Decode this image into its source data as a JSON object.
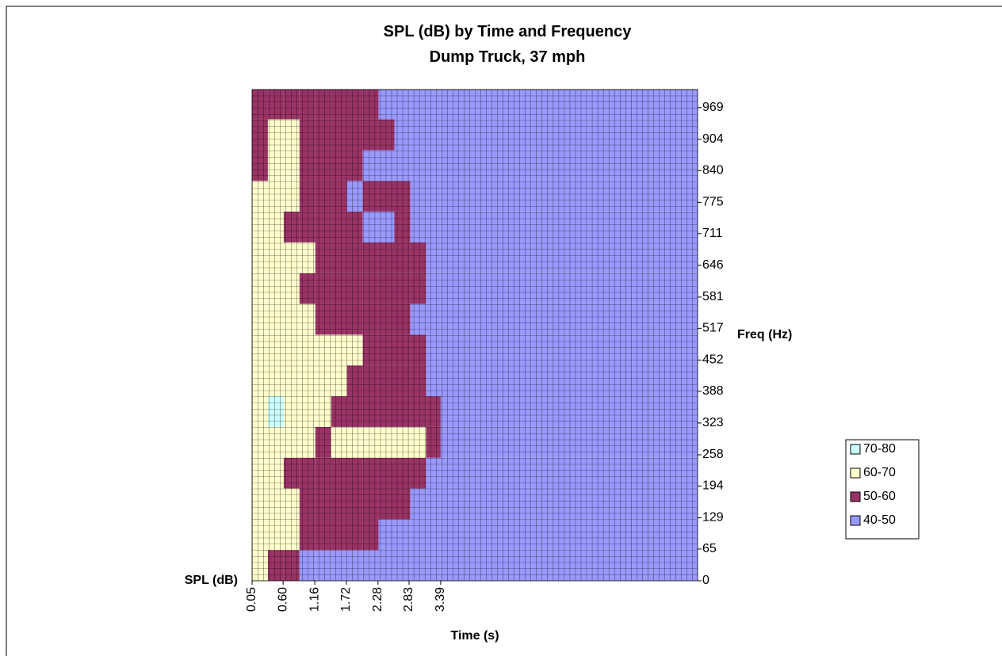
{
  "chart_data": {
    "type": "contour",
    "title": "SPL (dB) by Time and Frequency",
    "subtitle": "Dump Truck, 37 mph",
    "x_label": "Time (s)",
    "y_label": "Freq (Hz)",
    "z_label": "SPL (dB)",
    "xlim": [
      0.05,
      7.94
    ],
    "xticks": [
      {
        "value": 0.05,
        "label": "0.05"
      },
      {
        "value": 0.6,
        "label": "0.60"
      },
      {
        "value": 1.16,
        "label": "1.16"
      },
      {
        "value": 1.72,
        "label": "1.72"
      },
      {
        "value": 2.28,
        "label": "2.28"
      },
      {
        "value": 2.83,
        "label": "2.83"
      },
      {
        "value": 3.39,
        "label": "3.39"
      }
    ],
    "ylim": [
      0,
      1006
    ],
    "yticks": [
      0,
      65,
      129,
      194,
      258,
      323,
      388,
      452,
      517,
      581,
      646,
      711,
      775,
      840,
      904,
      969
    ],
    "x": [
      0.05,
      0.33,
      0.61,
      0.89,
      1.17,
      1.45,
      1.73,
      2.01,
      2.29,
      2.57,
      2.85,
      3.13,
      3.39,
      4,
      5,
      6,
      7
    ],
    "y": [
      0,
      63,
      126,
      189,
      252,
      315,
      378,
      441,
      504,
      567,
      630,
      693,
      756,
      819,
      882,
      945
    ],
    "z": [
      [
        62,
        55,
        52,
        48,
        46,
        45,
        45,
        45,
        45,
        45,
        45,
        45,
        45,
        45,
        45,
        45,
        45
      ],
      [
        64,
        63,
        61,
        58,
        57,
        56,
        55,
        52,
        48,
        47,
        46,
        45,
        45,
        45,
        45,
        45,
        45
      ],
      [
        67,
        63,
        62,
        57,
        58,
        56,
        55,
        56,
        57,
        52,
        48,
        46,
        45,
        45,
        45,
        45,
        45
      ],
      [
        65,
        63,
        58,
        56,
        57,
        55,
        54,
        56,
        55,
        54,
        52,
        48,
        45,
        45,
        45,
        45,
        45
      ],
      [
        68,
        65,
        66,
        63,
        57,
        64,
        63,
        61,
        63,
        62,
        61,
        52,
        45,
        45,
        45,
        45,
        45
      ],
      [
        66,
        72,
        65,
        64,
        63,
        58,
        57,
        56,
        55,
        54,
        55,
        52,
        45,
        45,
        45,
        45,
        45
      ],
      [
        65,
        63,
        62,
        64,
        65,
        62,
        56,
        54,
        53,
        55,
        52,
        49,
        45,
        45,
        45,
        45,
        45
      ],
      [
        63,
        64,
        62,
        64,
        63,
        65,
        61,
        57,
        56,
        55,
        54,
        48,
        45,
        45,
        45,
        45,
        45
      ],
      [
        62,
        64,
        63,
        61,
        57,
        56,
        55,
        54,
        53,
        52,
        48,
        46,
        45,
        45,
        45,
        45,
        45
      ],
      [
        63,
        64,
        62,
        57,
        58,
        55,
        56,
        54,
        55,
        56,
        52,
        47,
        45,
        45,
        45,
        45,
        45
      ],
      [
        64,
        62,
        61,
        63,
        58,
        57,
        56,
        55,
        53,
        54,
        52,
        46,
        45,
        45,
        45,
        45,
        45
      ],
      [
        62,
        63,
        57,
        58,
        56,
        53,
        55,
        48,
        47,
        52,
        48,
        45,
        45,
        45,
        45,
        45,
        45
      ],
      [
        63,
        61,
        60,
        56,
        55,
        54,
        49,
        55,
        53,
        56,
        47,
        45,
        45,
        45,
        45,
        45,
        45
      ],
      [
        58,
        61,
        62,
        56,
        55,
        54,
        53,
        47,
        46,
        45,
        45,
        45,
        45,
        45,
        45,
        45,
        45
      ],
      [
        56,
        61,
        63,
        58,
        55,
        53,
        52,
        54,
        53,
        48,
        47,
        45,
        45,
        45,
        45,
        45,
        45
      ],
      [
        55,
        57,
        56,
        54,
        55,
        53,
        56,
        52,
        47,
        46,
        45,
        45,
        45,
        45,
        45,
        45,
        45
      ]
    ],
    "levels": [
      {
        "name": "70-80",
        "color": "#ccffff",
        "range": [
          70,
          80
        ]
      },
      {
        "name": "60-70",
        "color": "#ffffcc",
        "range": [
          60,
          70
        ]
      },
      {
        "name": "50-60",
        "color": "#993366",
        "range": [
          50,
          60
        ]
      },
      {
        "name": "40-50",
        "color": "#9999ff",
        "range": [
          40,
          50
        ]
      }
    ],
    "grid": true
  }
}
